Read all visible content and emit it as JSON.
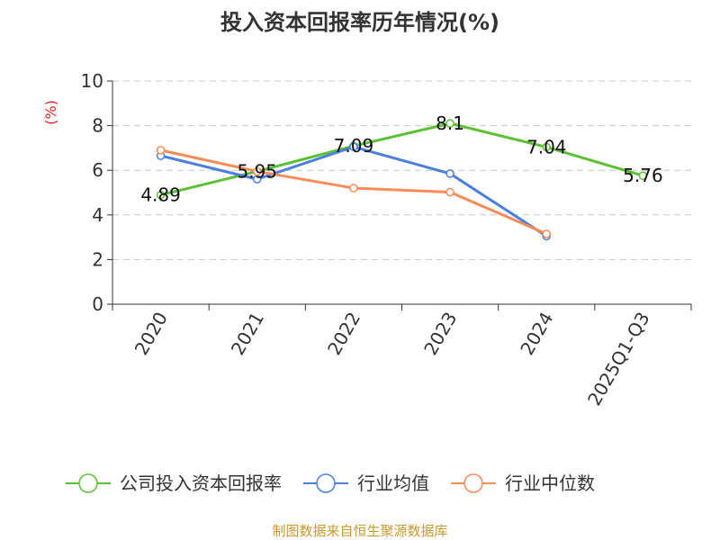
{
  "chart_data": {
    "type": "line",
    "title": "投入资本回报率历年情况(%)",
    "ylabel": "(%)",
    "xlabel": "",
    "categories": [
      "2020",
      "2021",
      "2022",
      "2023",
      "2024",
      "2025Q1-Q3"
    ],
    "ylim": [
      0,
      10
    ],
    "yticks": [
      0,
      2,
      4,
      6,
      8,
      10
    ],
    "grid": true,
    "legend_position": "bottom",
    "series": [
      {
        "name": "公司投入资本回报率",
        "color": "#5cc132",
        "values": [
          4.89,
          5.95,
          7.09,
          8.1,
          7.04,
          5.76
        ],
        "labels": [
          "4.89",
          "5.95",
          "7.09",
          "8.1",
          "7.04",
          "5.76"
        ]
      },
      {
        "name": "行业均值",
        "color": "#4a7fe0",
        "values": [
          6.65,
          5.6,
          7.05,
          5.85,
          3.05,
          null
        ]
      },
      {
        "name": "行业中位数",
        "color": "#f78c58",
        "values": [
          6.9,
          5.95,
          5.2,
          5.02,
          3.15,
          null
        ]
      }
    ]
  },
  "source": "制图数据来自恒生聚源数据库"
}
